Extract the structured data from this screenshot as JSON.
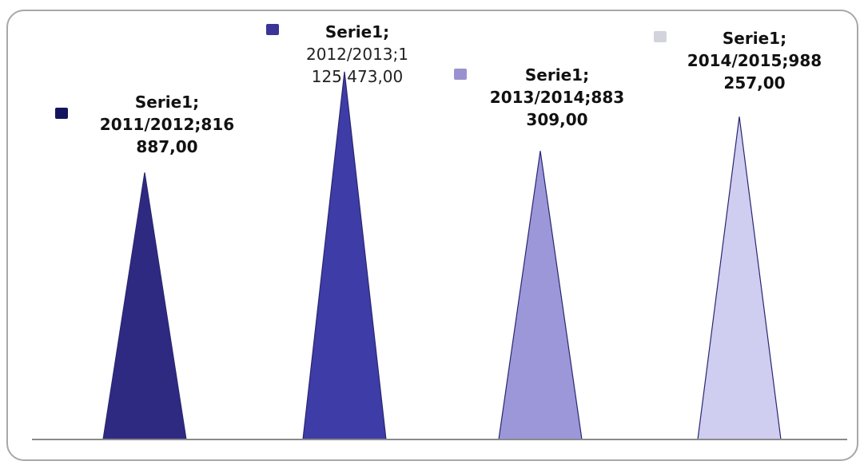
{
  "chart_data": {
    "type": "bar",
    "bar_shape": "triangle",
    "series": [
      {
        "name": "Serie1",
        "categories": [
          "2011/2012",
          "2012/2013",
          "2013/2014",
          "2014/2015"
        ],
        "values": [
          816887.0,
          1125473.0,
          883309.0,
          988257.0
        ]
      }
    ],
    "bar_colors": [
      "#2e2a82",
      "#3e3ca6",
      "#9c97d8",
      "#cfcdf0"
    ],
    "data_labels": [
      [
        "Serie1;",
        "2011/2012;816",
        "887,00"
      ],
      [
        "Serie1;",
        "2012/2013;1",
        "125 473,00"
      ],
      [
        "Serie1;",
        "2013/2014;883",
        "309,00"
      ],
      [
        "Serie1;",
        "2014/2015;988",
        "257,00"
      ]
    ],
    "legend_swatch_colors": [
      "#14145e",
      "#3a3596",
      "#9a92cf",
      "#d3d3dc"
    ],
    "grid": false,
    "axes_visible": false
  }
}
